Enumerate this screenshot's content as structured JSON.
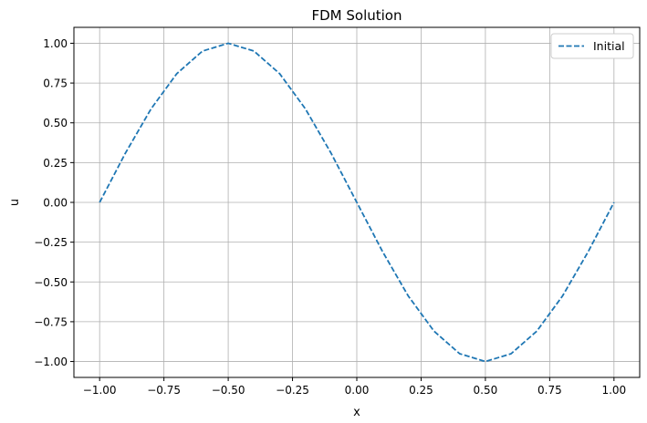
{
  "chart_data": {
    "type": "line",
    "title": "FDM Solution",
    "xlabel": "x",
    "ylabel": "u",
    "xlim": [
      -1.1,
      1.1
    ],
    "ylim": [
      -1.1,
      1.1
    ],
    "xticks": [
      -1.0,
      -0.75,
      -0.5,
      -0.25,
      0.0,
      0.25,
      0.5,
      0.75,
      1.0
    ],
    "xtick_labels": [
      "−1.00",
      "−0.75",
      "−0.50",
      "−0.25",
      "0.00",
      "0.25",
      "0.50",
      "0.75",
      "1.00"
    ],
    "yticks": [
      -1.0,
      -0.75,
      -0.5,
      -0.25,
      0.0,
      0.25,
      0.5,
      0.75,
      1.0
    ],
    "ytick_labels": [
      "−1.00",
      "−0.75",
      "−0.50",
      "−0.25",
      "0.00",
      "0.25",
      "0.50",
      "0.75",
      "1.00"
    ],
    "grid": true,
    "legend_position": "top-right",
    "series": [
      {
        "name": "Initial",
        "color": "#1f77b4",
        "style": "dashed",
        "x": [
          -1.0,
          -0.9,
          -0.8,
          -0.7,
          -0.6,
          -0.5,
          -0.4,
          -0.3,
          -0.2,
          -0.1,
          0.0,
          0.1,
          0.2,
          0.3,
          0.4,
          0.5,
          0.6,
          0.7,
          0.8,
          0.9,
          1.0
        ],
        "y": [
          0.0,
          0.309,
          0.588,
          0.809,
          0.951,
          1.0,
          0.951,
          0.809,
          0.588,
          0.309,
          0.0,
          -0.309,
          -0.588,
          -0.809,
          -0.951,
          -1.0,
          -0.951,
          -0.809,
          -0.588,
          -0.309,
          0.0
        ]
      }
    ]
  }
}
